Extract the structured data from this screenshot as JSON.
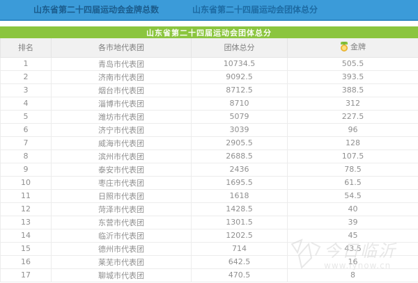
{
  "tabbar": {
    "tabs": [
      {
        "label": "山东省第二十四届运动会金牌总数"
      },
      {
        "label": "山东省第二十四届运动会团体总分"
      }
    ]
  },
  "banner": {
    "title": "山东省第二十四届运动会团体总分"
  },
  "table": {
    "headers": [
      "排名",
      "各市地代表团",
      "团体总分",
      "金牌"
    ],
    "gold_icon": "gold-medal-icon",
    "rows": [
      [
        "1",
        "青岛市代表团",
        "10734.5",
        "505.5"
      ],
      [
        "2",
        "济南市代表团",
        "9092.5",
        "393.5"
      ],
      [
        "3",
        "烟台市代表团",
        "8712.5",
        "388.5"
      ],
      [
        "4",
        "淄博市代表团",
        "8710",
        "312"
      ],
      [
        "5",
        "潍坊市代表团",
        "5079",
        "227.5"
      ],
      [
        "6",
        "济宁市代表团",
        "3039",
        "96"
      ],
      [
        "7",
        "威海市代表团",
        "2905.5",
        "128"
      ],
      [
        "8",
        "滨州市代表团",
        "2688.5",
        "107.5"
      ],
      [
        "9",
        "泰安市代表团",
        "2436",
        "78.5"
      ],
      [
        "10",
        "枣庄市代表团",
        "1695.5",
        "61.5"
      ],
      [
        "11",
        "日照市代表团",
        "1618",
        "54.5"
      ],
      [
        "12",
        "菏泽市代表团",
        "1428.5",
        "40"
      ],
      [
        "13",
        "东营市代表团",
        "1301.5",
        "39"
      ],
      [
        "14",
        "临沂市代表团",
        "1202.5",
        "45"
      ],
      [
        "15",
        "德州市代表团",
        "714",
        "43.5"
      ],
      [
        "16",
        "莱芜市代表团",
        "642.5",
        "16"
      ],
      [
        "17",
        "聊城市代表团",
        "470.5",
        "8"
      ]
    ]
  },
  "watermark": {
    "site_name": "今日临沂",
    "url": "www.lynow.cn"
  },
  "colors": {
    "tabbar_blue": "#3b9bd9",
    "tab_text_blue": "#1b5c8c",
    "banner_green": "#8bc53f",
    "header_gray": "#f1f1f1",
    "cell_text": "#8f8f8f",
    "medal_gold": "#f6c438",
    "medal_ribbon_green": "#7ab83a"
  }
}
